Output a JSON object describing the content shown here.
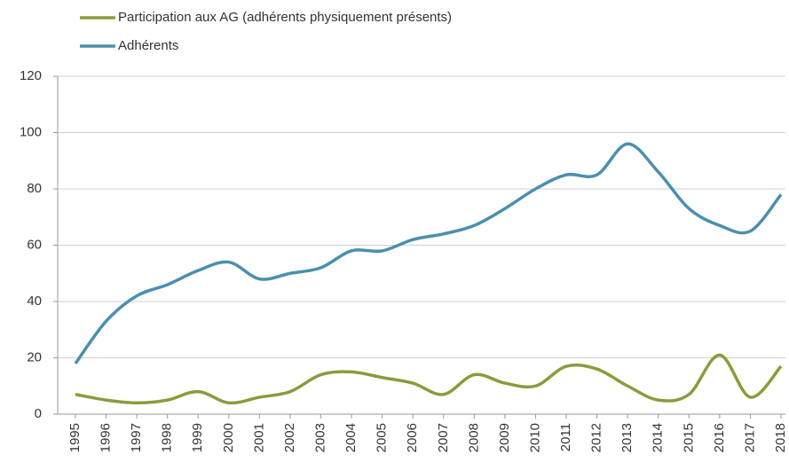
{
  "chart_data": {
    "type": "line",
    "categories": [
      "1995",
      "1996",
      "1997",
      "1998",
      "1999",
      "2000",
      "2001",
      "2002",
      "2003",
      "2004",
      "2005",
      "2006",
      "2007",
      "2008",
      "2009",
      "2010",
      "2011",
      "2012",
      "2013",
      "2014",
      "2015",
      "2016",
      "2017",
      "2018"
    ],
    "series": [
      {
        "name": "Participation aux AG (adhérents physiquement présents)",
        "color": "#8b9b3c",
        "values": [
          7,
          5,
          4,
          5,
          8,
          4,
          6,
          8,
          14,
          15,
          13,
          11,
          7,
          14,
          11,
          10,
          17,
          16,
          10,
          5,
          7,
          21,
          6,
          17
        ]
      },
      {
        "name": "Adhérents",
        "color": "#4b8fae",
        "values": [
          18,
          33,
          42,
          46,
          51,
          54,
          48,
          50,
          52,
          58,
          58,
          62,
          64,
          67,
          73,
          80,
          85,
          85,
          96,
          86,
          73,
          67,
          65,
          78
        ]
      }
    ],
    "ylim": [
      0,
      120
    ],
    "yticks": [
      0,
      20,
      40,
      60,
      80,
      100,
      120
    ],
    "grid": true
  }
}
